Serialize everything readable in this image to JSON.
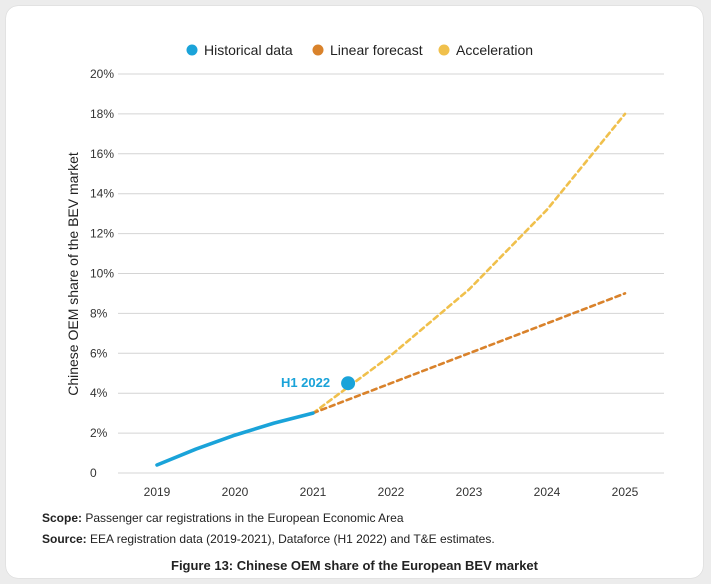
{
  "chart_data": {
    "type": "line",
    "ylabel": "Chinese OEM share of the BEV market",
    "xlabel": "",
    "ylim": [
      0,
      20
    ],
    "yticks": [
      0,
      2,
      4,
      6,
      8,
      10,
      12,
      14,
      16,
      18,
      20
    ],
    "ytick_labels": [
      "0",
      "2%",
      "4%",
      "6%",
      "8%",
      "10%",
      "12%",
      "14%",
      "16%",
      "18%",
      "20%"
    ],
    "xlim": [
      2018.5,
      2025.5
    ],
    "xticks": [
      2019,
      2020,
      2021,
      2022,
      2023,
      2024,
      2025
    ],
    "xtick_labels": [
      "2019",
      "2020",
      "2021",
      "2022",
      "2023",
      "2024",
      "2025"
    ],
    "grid": true,
    "legend_position": "top",
    "series": [
      {
        "name": "Historical data",
        "color": "#1aa3d9",
        "style": "solid",
        "points": [
          [
            2019,
            0.4
          ],
          [
            2019.5,
            1.2
          ],
          [
            2020,
            1.9
          ],
          [
            2020.5,
            2.5
          ],
          [
            2021,
            3.0
          ]
        ]
      },
      {
        "name": "Linear forecast",
        "color": "#d9822b",
        "style": "dashed",
        "points": [
          [
            2021,
            3.0
          ],
          [
            2022,
            4.5
          ],
          [
            2023,
            6.0
          ],
          [
            2024,
            7.5
          ],
          [
            2025,
            9.0
          ]
        ]
      },
      {
        "name": "Acceleration",
        "color": "#f0c04c",
        "style": "dashed",
        "points": [
          [
            2021,
            3.0
          ],
          [
            2022,
            5.9
          ],
          [
            2023,
            9.2
          ],
          [
            2024,
            13.2
          ],
          [
            2025,
            18.0
          ]
        ]
      }
    ],
    "highlight_point": {
      "label": "H1 2022",
      "x": 2021.45,
      "y": 4.5,
      "color": "#1aa3d9"
    }
  },
  "notes": {
    "scope_label": "Scope:",
    "scope_text": " Passenger car registrations in the European Economic Area",
    "source_label": "Source:",
    "source_text": " EEA registration data (2019-2021), Dataforce (H1 2022) and T&E estimates."
  },
  "caption": "Figure 13: Chinese OEM share of the European BEV market"
}
